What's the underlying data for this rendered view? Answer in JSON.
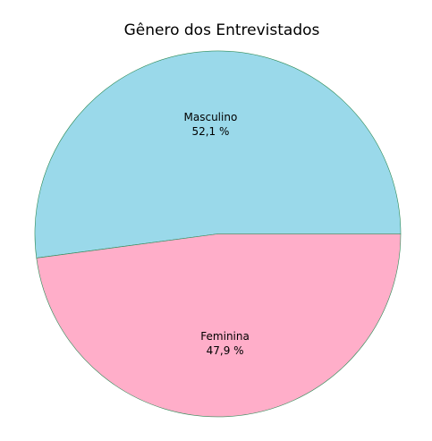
{
  "chart_data": {
    "type": "pie",
    "title": "Gênero dos Entrevistados",
    "slices": [
      {
        "label": "Masculino",
        "value": 52.1,
        "value_label": "52,1 %",
        "color": "#9ad9ea"
      },
      {
        "label": "Feminina",
        "value": 47.9,
        "value_label": "47,9 %",
        "color": "#ffaec9"
      }
    ],
    "start_angle_deg": 0,
    "direction": "counterclockwise",
    "legend": "none",
    "edge_color": "#2e8b57"
  }
}
